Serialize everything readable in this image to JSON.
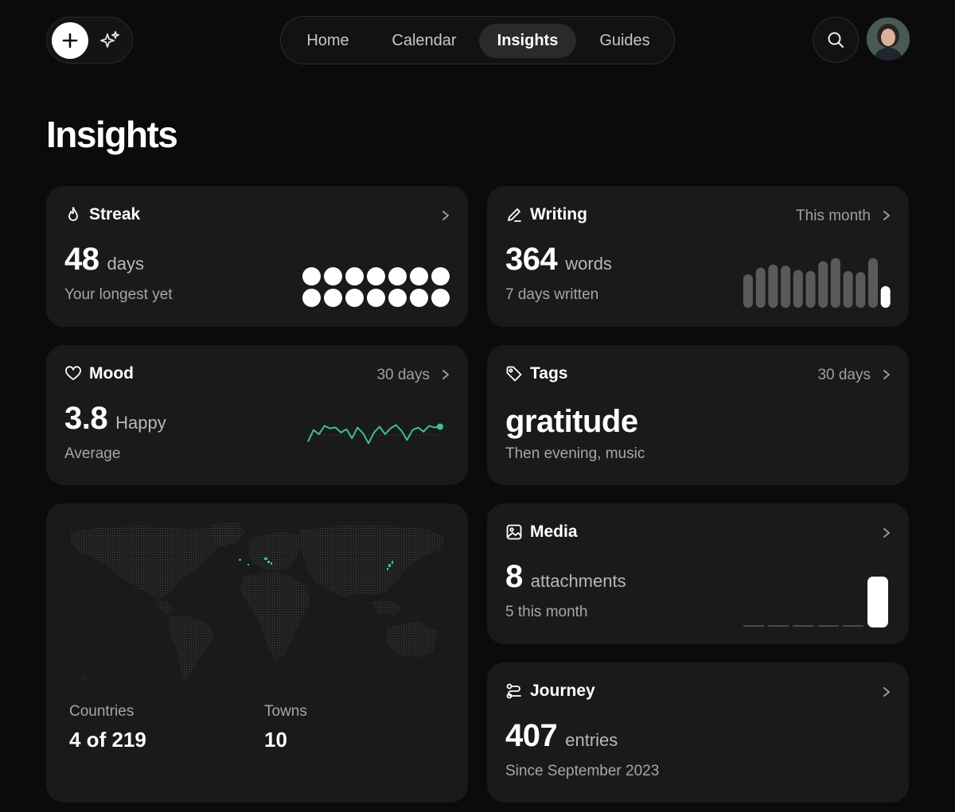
{
  "topbar": {
    "nav": [
      {
        "label": "Home",
        "active": false
      },
      {
        "label": "Calendar",
        "active": false
      },
      {
        "label": "Insights",
        "active": true
      },
      {
        "label": "Guides",
        "active": false
      }
    ],
    "icons": [
      "plus-icon",
      "sparkle-icon",
      "search-icon",
      "avatar"
    ]
  },
  "page": {
    "title": "Insights"
  },
  "streak": {
    "title": "Streak",
    "value": "48",
    "unit": "days",
    "caption": "Your longest yet",
    "dots_filled": 14
  },
  "writing": {
    "title": "Writing",
    "range": "This month",
    "value": "364",
    "unit": "words",
    "caption": "7 days written",
    "bar_values": [
      0.62,
      0.74,
      0.8,
      0.78,
      0.7,
      0.68,
      0.86,
      0.92,
      0.68,
      0.66,
      0.92,
      0.4
    ],
    "highlight_index": 11
  },
  "mood": {
    "title": "Mood",
    "range": "30 days",
    "value": "3.8",
    "unit": "Happy",
    "caption": "Average",
    "accent": "#3fbf8f",
    "series": [
      2.2,
      3.6,
      3.1,
      4.1,
      3.8,
      3.9,
      3.3,
      3.7,
      2.6,
      3.9,
      3.2,
      2.0,
      3.3,
      4.0,
      3.1,
      3.8,
      4.2,
      3.5,
      2.4,
      3.6,
      3.9,
      3.4,
      4.1,
      3.9,
      4.0
    ]
  },
  "tags": {
    "title": "Tags",
    "range": "30 days",
    "top_tag": "gratitude",
    "caption": "Then evening, music"
  },
  "map_card": {
    "countries_label": "Countries",
    "countries_value": "4 of 219",
    "towns_label": "Towns",
    "towns_value": "10",
    "accent": "#3fbf8f"
  },
  "media": {
    "title": "Media",
    "value": "8",
    "unit": "attachments",
    "caption": "5 this month",
    "bar_values": [
      0,
      0,
      0,
      0,
      0,
      1
    ]
  },
  "journey": {
    "title": "Journey",
    "value": "407",
    "unit": "entries",
    "caption": "Since September 2023"
  }
}
